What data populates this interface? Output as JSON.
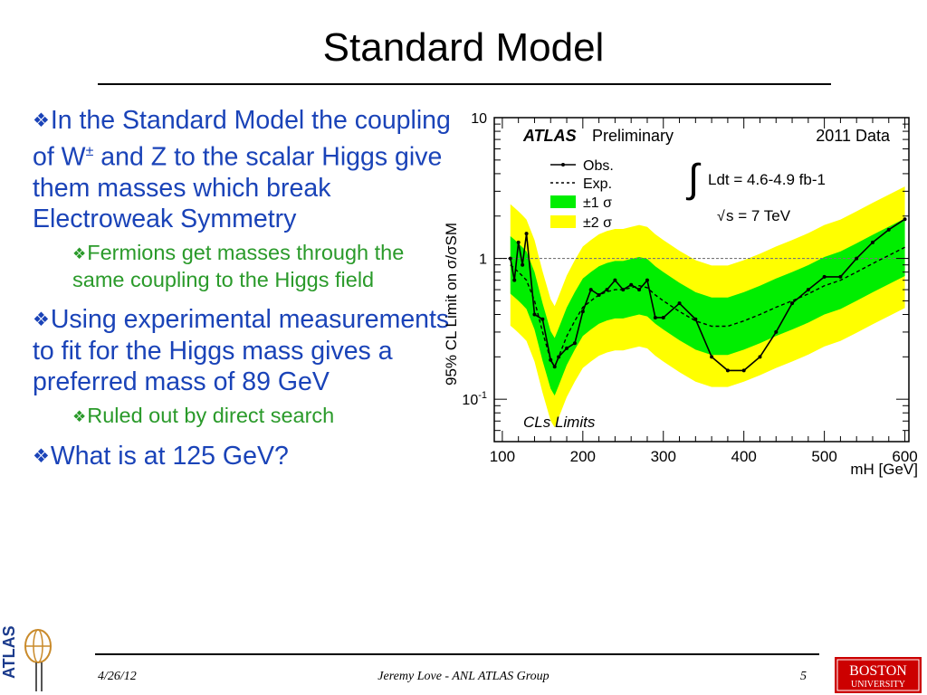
{
  "slide": {
    "title": "Standard Model",
    "bullets": [
      {
        "level": 1,
        "pre": "In the Standard Model the coupling of W",
        "sup": "±",
        "post": " and Z to the scalar Higgs give them masses which break Electroweak Symmetry"
      },
      {
        "level": 2,
        "text": "Fermions get masses through the same coupling to the Higgs field"
      },
      {
        "level": 1,
        "text": "Using experimental measurements to fit for the Higgs mass gives a preferred mass of 89 GeV"
      },
      {
        "level": 2,
        "text": "Ruled out by direct search"
      },
      {
        "level": 1,
        "text": "What is at 125 GeV?"
      }
    ],
    "bullet_icon": "diamond-bullet-icon",
    "colors": {
      "level1": "#1a43b8",
      "level2": "#2a9a2a"
    }
  },
  "footer": {
    "date": "4/26/12",
    "author": "Jeremy Love - ANL ATLAS Group",
    "page": "5",
    "left_logo_text": "ATLAS",
    "right_logo_text": [
      "BOSTON",
      "UNIVERSITY"
    ]
  },
  "chart_data": {
    "type": "line",
    "ylabel": "95% CL Limit on σ/σSM",
    "xlabel": "mH [GeV]",
    "xlim": [
      90,
      605
    ],
    "ylim": [
      0.05,
      10
    ],
    "yscale": "log",
    "xticks": [
      "100",
      "200",
      "300",
      "400",
      "500",
      "600"
    ],
    "yticks": [
      "10",
      "1",
      "10-1"
    ],
    "labels": {
      "experiment": "ATLAS",
      "status": "Preliminary",
      "data": "2011 Data",
      "lumi": "Ldt = 4.6-4.9 fb-1",
      "energy": "s = 7 TeV",
      "method": "CLs Limits"
    },
    "legend": {
      "placement": "top-left",
      "entries": [
        "Obs.",
        "Exp.",
        "±1 σ",
        "±2 σ"
      ]
    },
    "reference_line": 1,
    "x": [
      110,
      115,
      120,
      125,
      130,
      140,
      150,
      160,
      165,
      170,
      180,
      190,
      200,
      210,
      220,
      230,
      240,
      250,
      260,
      270,
      280,
      290,
      300,
      320,
      340,
      360,
      380,
      400,
      420,
      440,
      460,
      480,
      500,
      520,
      540,
      560,
      580,
      600
    ],
    "observed": [
      1.0,
      0.7,
      1.3,
      0.9,
      1.5,
      0.4,
      0.37,
      0.19,
      0.17,
      0.2,
      0.23,
      0.25,
      0.42,
      0.6,
      0.55,
      0.6,
      0.7,
      0.6,
      0.65,
      0.6,
      0.7,
      0.38,
      0.38,
      0.48,
      0.37,
      0.2,
      0.16,
      0.16,
      0.2,
      0.3,
      0.48,
      0.6,
      0.74,
      0.74,
      1.0,
      1.3,
      1.6,
      1.9
    ],
    "expected": [
      0.9,
      0.85,
      0.8,
      0.75,
      0.7,
      0.5,
      0.3,
      0.19,
      0.17,
      0.2,
      0.28,
      0.36,
      0.45,
      0.5,
      0.55,
      0.58,
      0.6,
      0.6,
      0.62,
      0.64,
      0.62,
      0.55,
      0.5,
      0.42,
      0.36,
      0.33,
      0.33,
      0.36,
      0.4,
      0.45,
      0.5,
      0.56,
      0.64,
      0.7,
      0.8,
      0.92,
      1.05,
      1.2
    ],
    "colors": {
      "band1": "#00ee00",
      "band2": "#ffff00",
      "observed": "#000000",
      "expected": "#000000"
    }
  }
}
